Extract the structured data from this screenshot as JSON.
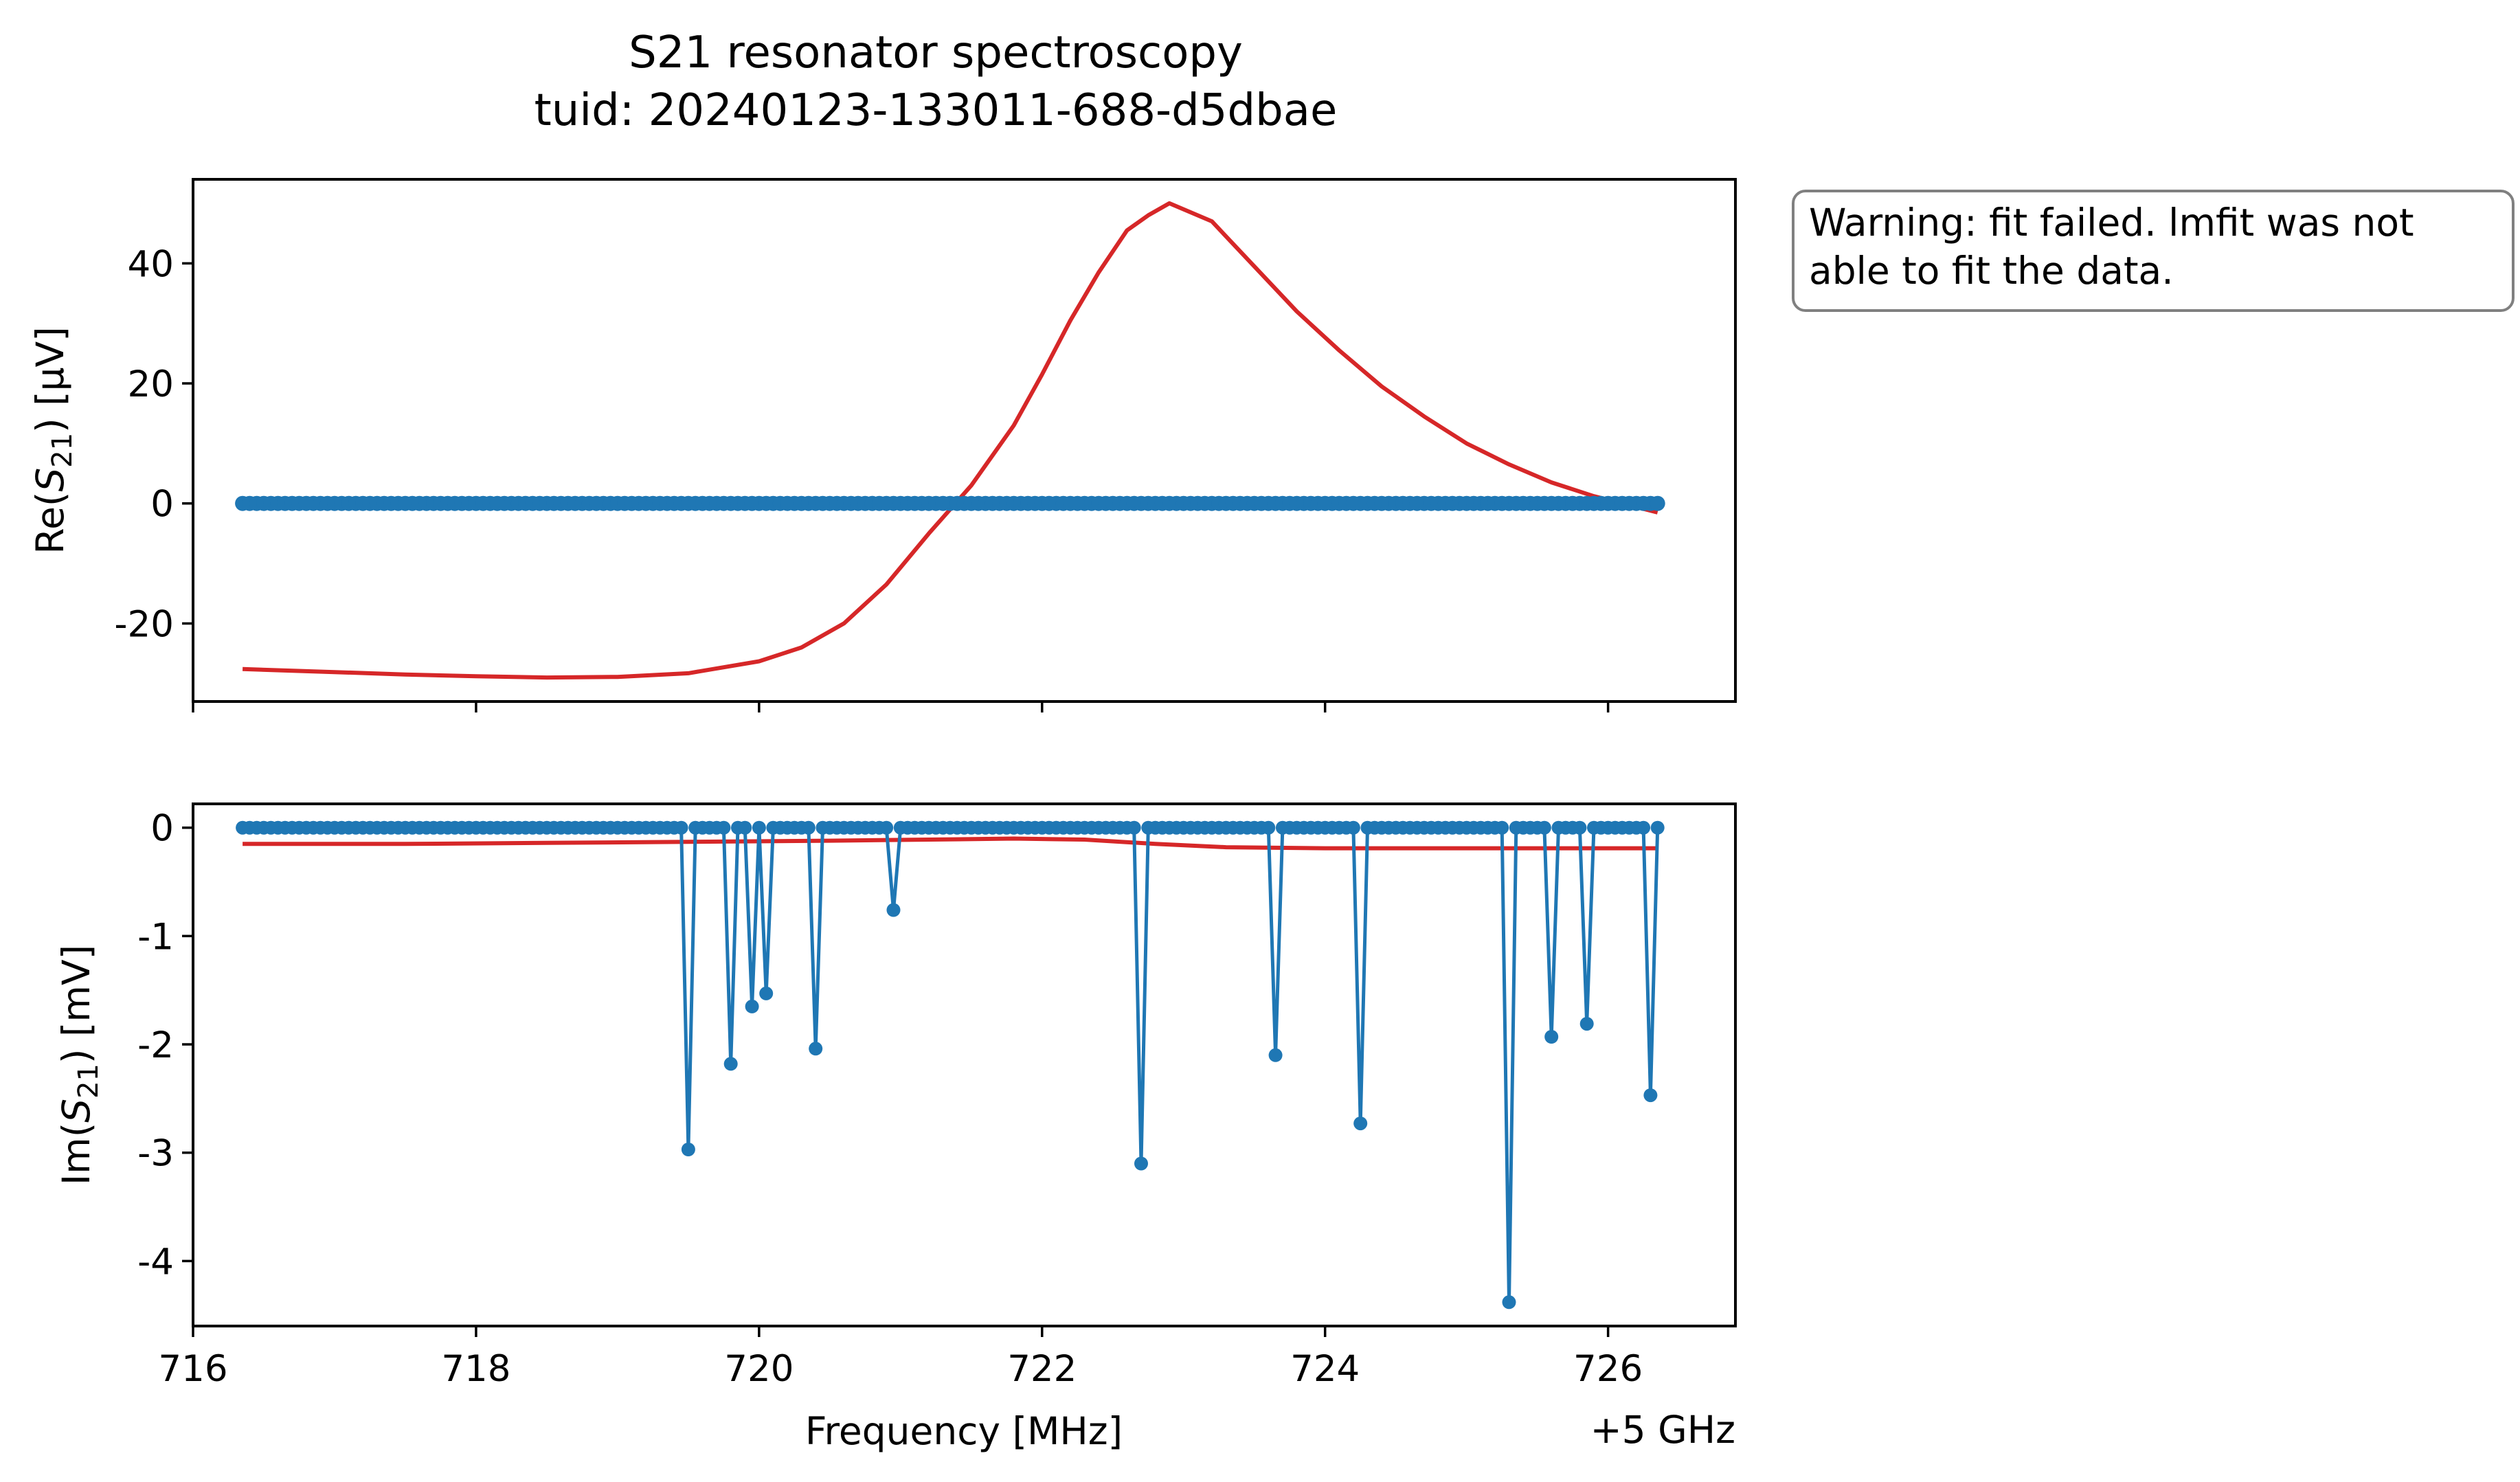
{
  "title": "S21 resonator spectroscopy",
  "subtitle": "tuid: 20240123-133011-688-d5dbae",
  "note": {
    "line1": "Warning: fit failed. lmfit was not",
    "line2": "able to fit the data."
  },
  "colors": {
    "data": "#1f77b4",
    "fit": "#d62728",
    "note_border": "#808080"
  },
  "chart_data": [
    {
      "type": "scatter",
      "panel": "top",
      "ylabel_prefix": "Re(",
      "ylabel_var": "S",
      "ylabel_sub": "21",
      "ylabel_suffix": ") [µV]",
      "xlim": [
        716.0,
        726.9
      ],
      "ylim": [
        -33,
        54
      ],
      "yticks": [
        40,
        20,
        0,
        -20
      ],
      "ytick_labels": [
        "40",
        "20",
        "0",
        "-20"
      ],
      "xticks": [
        716,
        718,
        720,
        722,
        724,
        726
      ],
      "xtick_labels_shown": false,
      "grid": false,
      "series": [
        {
          "kind": "data",
          "x_start": 716.35,
          "x_end": 726.35,
          "n_points": 201,
          "y_constant": 0
        },
        {
          "kind": "fit",
          "x": [
            716.35,
            717.0,
            717.5,
            718.0,
            718.5,
            719.0,
            719.5,
            720.0,
            720.3,
            720.6,
            720.9,
            721.2,
            721.5,
            721.8,
            722.0,
            722.2,
            722.4,
            722.6,
            722.75,
            722.9,
            723.2,
            723.5,
            723.8,
            724.1,
            724.4,
            724.7,
            725.0,
            725.3,
            725.6,
            725.9,
            726.1,
            726.35
          ],
          "y": [
            -27.6,
            -28.1,
            -28.5,
            -28.8,
            -29.0,
            -28.9,
            -28.3,
            -26.3,
            -24.0,
            -20.0,
            -13.5,
            -5.0,
            3.0,
            13.0,
            21.5,
            30.5,
            38.5,
            45.5,
            48.0,
            50.0,
            47.0,
            39.5,
            32.0,
            25.5,
            19.5,
            14.5,
            10.0,
            6.5,
            3.5,
            1.2,
            0.0,
            -1.5
          ]
        }
      ]
    },
    {
      "type": "line",
      "panel": "bottom",
      "ylabel_prefix": "Im(",
      "ylabel_var": "S",
      "ylabel_sub": "21",
      "ylabel_suffix": ") [mV]",
      "xlabel": "Frequency [MHz]",
      "x_offset_label": "+5 GHz",
      "xlim": [
        716.0,
        726.9
      ],
      "ylim": [
        -4.6,
        0.22
      ],
      "yticks": [
        0,
        -1,
        -2,
        -3,
        -4
      ],
      "ytick_labels": [
        "0",
        "-1",
        "-2",
        "-3",
        "-4"
      ],
      "xticks": [
        716,
        718,
        720,
        722,
        724,
        726
      ],
      "xtick_labels": [
        "716",
        "718",
        "720",
        "722",
        "724",
        "726"
      ],
      "grid": false,
      "series": [
        {
          "kind": "data",
          "x_start": 716.35,
          "x_end": 726.35,
          "n_points": 201,
          "y_baseline": 0,
          "dips": [
            {
              "x": 719.5,
              "y": -2.97
            },
            {
              "x": 719.8,
              "y": -2.18
            },
            {
              "x": 719.95,
              "y": -1.65
            },
            {
              "x": 720.05,
              "y": -1.53
            },
            {
              "x": 720.4,
              "y": -2.04
            },
            {
              "x": 720.95,
              "y": -0.76
            },
            {
              "x": 722.7,
              "y": -3.1
            },
            {
              "x": 723.65,
              "y": -2.1
            },
            {
              "x": 724.25,
              "y": -2.73
            },
            {
              "x": 725.3,
              "y": -4.38
            },
            {
              "x": 725.6,
              "y": -1.93
            },
            {
              "x": 725.85,
              "y": -1.81
            },
            {
              "x": 726.3,
              "y": -2.47
            }
          ]
        },
        {
          "kind": "fit",
          "x": [
            716.35,
            717.5,
            718.5,
            719.5,
            720.5,
            721.2,
            721.8,
            722.3,
            722.8,
            723.3,
            724.0,
            725.0,
            726.35
          ],
          "y": [
            -0.15,
            -0.15,
            -0.14,
            -0.13,
            -0.12,
            -0.11,
            -0.1,
            -0.11,
            -0.15,
            -0.18,
            -0.19,
            -0.19,
            -0.19
          ]
        }
      ]
    }
  ]
}
